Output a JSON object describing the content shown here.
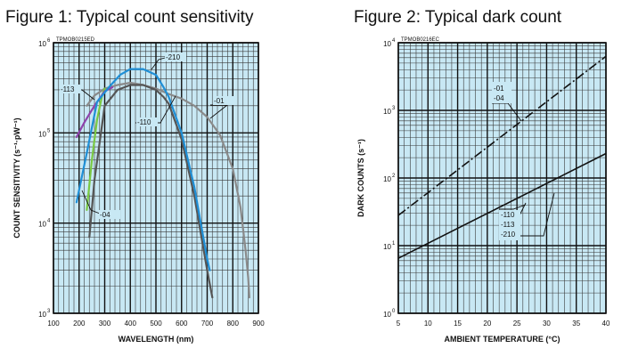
{
  "chart_data": [
    {
      "type": "line",
      "title": "Figure 1: Typical count sensitivity",
      "code": "TPMOB0215ED",
      "xlabel": "WAVELENGTH (nm)",
      "ylabel": "COUNT SENSITIVITY (s⁻¹·pW⁻¹)",
      "xscale": "linear",
      "yscale": "log",
      "xlim": [
        100,
        900
      ],
      "ylim": [
        1000,
        1000000
      ],
      "xticks": [
        "100",
        "200",
        "300",
        "400",
        "500",
        "600",
        "700",
        "800",
        "900"
      ],
      "yticks": [
        {
          "value": 1000,
          "base": "10",
          "exp": "3"
        },
        {
          "value": 10000,
          "base": "10",
          "exp": "4"
        },
        {
          "value": 100000,
          "base": "10",
          "exp": "5"
        },
        {
          "value": 1000000,
          "base": "10",
          "exp": "6"
        }
      ],
      "grid": true,
      "background": "#c8e8f4",
      "series": [
        {
          "name": "-01",
          "color": "#8a8a8a",
          "x": [
            230,
            260,
            300,
            350,
            400,
            450,
            500,
            550,
            600,
            650,
            700,
            750,
            800,
            830,
            850,
            860,
            865
          ],
          "y": [
            200000,
            260000,
            310000,
            340000,
            360000,
            340000,
            310000,
            270000,
            240000,
            200000,
            150000,
            95000,
            40000,
            15000,
            5000,
            2500,
            1500
          ]
        },
        {
          "name": "-04",
          "color": "#7ac943",
          "x": [
            230,
            250,
            270,
            290,
            300
          ],
          "y": [
            14000,
            50000,
            140000,
            260000,
            310000
          ]
        },
        {
          "name": "-110",
          "color": "#555555",
          "x": [
            240,
            260,
            300,
            350,
            400,
            450,
            500,
            530,
            550,
            600,
            650,
            700,
            720
          ],
          "y": [
            7000,
            30000,
            200000,
            300000,
            340000,
            340000,
            300000,
            250000,
            210000,
            85000,
            20000,
            3000,
            1500
          ]
        },
        {
          "name": "-113",
          "color": "#8e44ad",
          "x": [
            190,
            220,
            260,
            300,
            330
          ],
          "y": [
            90000,
            130000,
            200000,
            290000,
            320000
          ]
        },
        {
          "name": "-210",
          "color": "#1f8fd6",
          "x": [
            190,
            230,
            270,
            320,
            360,
            400,
            450,
            500,
            530,
            550,
            600,
            650,
            700,
            710
          ],
          "y": [
            17000,
            60000,
            220000,
            330000,
            440000,
            510000,
            510000,
            440000,
            320000,
            250000,
            100000,
            25000,
            4000,
            3000
          ]
        }
      ],
      "annotations": [
        "-210",
        "-113",
        "-110",
        "-01",
        "-04"
      ]
    },
    {
      "type": "line",
      "title": "Figure 2: Typical dark count",
      "code": "TPMOB0216EC",
      "xlabel": "AMBIENT TEMPERATURE (°C)",
      "ylabel": "DARK COUNTS (s⁻¹)",
      "xscale": "linear",
      "yscale": "log",
      "xlim": [
        5,
        40
      ],
      "ylim": [
        1,
        10000
      ],
      "xticks": [
        "5",
        "10",
        "15",
        "20",
        "25",
        "30",
        "35",
        "40"
      ],
      "yticks": [
        {
          "value": 1,
          "base": "10",
          "exp": "0"
        },
        {
          "value": 10,
          "base": "10",
          "exp": "1"
        },
        {
          "value": 100,
          "base": "10",
          "exp": "2"
        },
        {
          "value": 1000,
          "base": "10",
          "exp": "3"
        },
        {
          "value": 10000,
          "base": "10",
          "exp": "4"
        }
      ],
      "grid": true,
      "background": "#c8e8f4",
      "series": [
        {
          "name": "-01, -04",
          "style": "dash-dot",
          "color": "#111111",
          "x": [
            5,
            40
          ],
          "y": [
            28,
            6300
          ]
        },
        {
          "name": "-110, -113, -210",
          "style": "solid",
          "color": "#111111",
          "x": [
            5,
            40
          ],
          "y": [
            6.5,
            230
          ]
        }
      ],
      "annotations": [
        {
          "lines": [
            "-01",
            "-04"
          ]
        },
        {
          "lines": [
            "-110",
            "-113",
            "-210"
          ]
        }
      ]
    }
  ]
}
